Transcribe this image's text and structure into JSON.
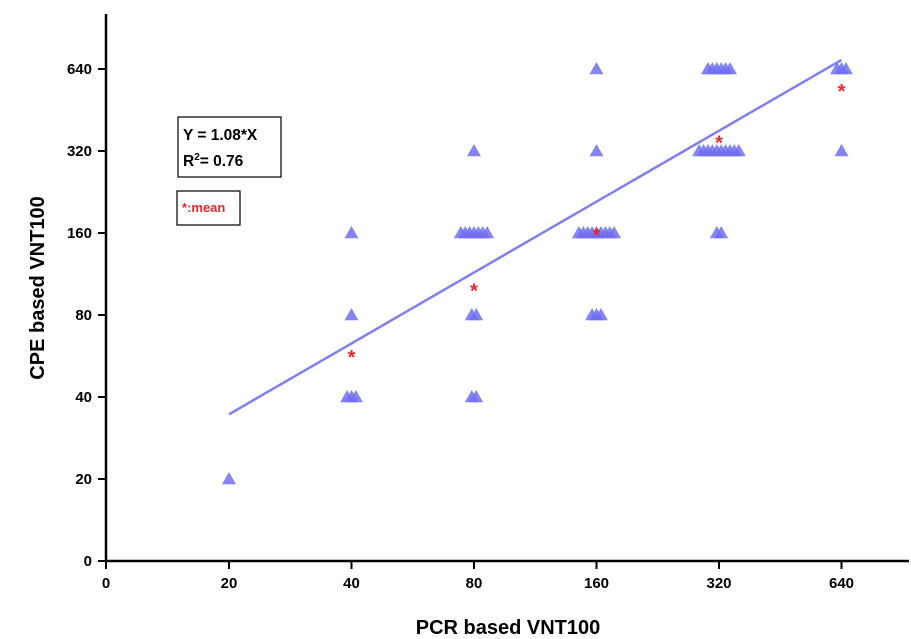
{
  "chart_data": {
    "type": "scatter",
    "xlabel": "PCR based VNT100",
    "ylabel": "CPE based VNT100",
    "x_scale": "log2",
    "y_scale": "log2",
    "x_ticks": [
      {
        "value": 0,
        "label": "0"
      },
      {
        "value": 20,
        "label": "20"
      },
      {
        "value": 40,
        "label": "40"
      },
      {
        "value": 80,
        "label": "80"
      },
      {
        "value": 160,
        "label": "160"
      },
      {
        "value": 320,
        "label": "320"
      },
      {
        "value": 640,
        "label": "640"
      }
    ],
    "y_ticks": [
      {
        "value": 0,
        "label": "0"
      },
      {
        "value": 20,
        "label": "20"
      },
      {
        "value": 40,
        "label": "40"
      },
      {
        "value": 80,
        "label": "80"
      },
      {
        "value": 160,
        "label": "160"
      },
      {
        "value": 320,
        "label": "320"
      },
      {
        "value": 640,
        "label": "640"
      }
    ],
    "series": [
      {
        "marker": "triangle",
        "color": "#6f6ff0",
        "points": [
          {
            "x": 20,
            "y": 20
          },
          {
            "x": 40,
            "y": 40
          },
          {
            "x": 40,
            "y": 40
          },
          {
            "x": 40,
            "y": 40
          },
          {
            "x": 40,
            "y": 80
          },
          {
            "x": 40,
            "y": 160
          },
          {
            "x": 80,
            "y": 40
          },
          {
            "x": 80,
            "y": 40
          },
          {
            "x": 80,
            "y": 80
          },
          {
            "x": 80,
            "y": 80
          },
          {
            "x": 80,
            "y": 160
          },
          {
            "x": 80,
            "y": 160
          },
          {
            "x": 80,
            "y": 160
          },
          {
            "x": 80,
            "y": 160
          },
          {
            "x": 80,
            "y": 160
          },
          {
            "x": 80,
            "y": 160
          },
          {
            "x": 80,
            "y": 160
          },
          {
            "x": 80,
            "y": 320
          },
          {
            "x": 160,
            "y": 80
          },
          {
            "x": 160,
            "y": 80
          },
          {
            "x": 160,
            "y": 80
          },
          {
            "x": 160,
            "y": 160
          },
          {
            "x": 160,
            "y": 160
          },
          {
            "x": 160,
            "y": 160
          },
          {
            "x": 160,
            "y": 160
          },
          {
            "x": 160,
            "y": 160
          },
          {
            "x": 160,
            "y": 160
          },
          {
            "x": 160,
            "y": 160
          },
          {
            "x": 160,
            "y": 160
          },
          {
            "x": 160,
            "y": 160
          },
          {
            "x": 160,
            "y": 320
          },
          {
            "x": 160,
            "y": 640
          },
          {
            "x": 320,
            "y": 160
          },
          {
            "x": 320,
            "y": 160
          },
          {
            "x": 320,
            "y": 320
          },
          {
            "x": 320,
            "y": 320
          },
          {
            "x": 320,
            "y": 320
          },
          {
            "x": 320,
            "y": 320
          },
          {
            "x": 320,
            "y": 320
          },
          {
            "x": 320,
            "y": 320
          },
          {
            "x": 320,
            "y": 320
          },
          {
            "x": 320,
            "y": 320
          },
          {
            "x": 320,
            "y": 320
          },
          {
            "x": 320,
            "y": 320
          },
          {
            "x": 320,
            "y": 640
          },
          {
            "x": 320,
            "y": 640
          },
          {
            "x": 320,
            "y": 640
          },
          {
            "x": 320,
            "y": 640
          },
          {
            "x": 320,
            "y": 640
          },
          {
            "x": 320,
            "y": 640
          },
          {
            "x": 640,
            "y": 320
          },
          {
            "x": 640,
            "y": 640
          },
          {
            "x": 640,
            "y": 640
          },
          {
            "x": 640,
            "y": 640
          }
        ]
      }
    ],
    "means": {
      "marker": "*",
      "color": "#e8262a",
      "points": [
        {
          "x": 40,
          "y": 57
        },
        {
          "x": 80,
          "y": 100
        },
        {
          "x": 160,
          "y": 160
        },
        {
          "x": 320,
          "y": 350
        },
        {
          "x": 640,
          "y": 540
        }
      ]
    },
    "fit_line": {
      "slope": 1.08,
      "color": "#7f7fee",
      "x_range": [
        20,
        640
      ]
    },
    "equation_box": {
      "line1": "Y = 1.08*X",
      "line2_prefix": "R",
      "line2_sup": "2",
      "line2_rest": "= 0.76"
    },
    "mean_legend": {
      "symbol": "*",
      "text": ":mean"
    }
  }
}
